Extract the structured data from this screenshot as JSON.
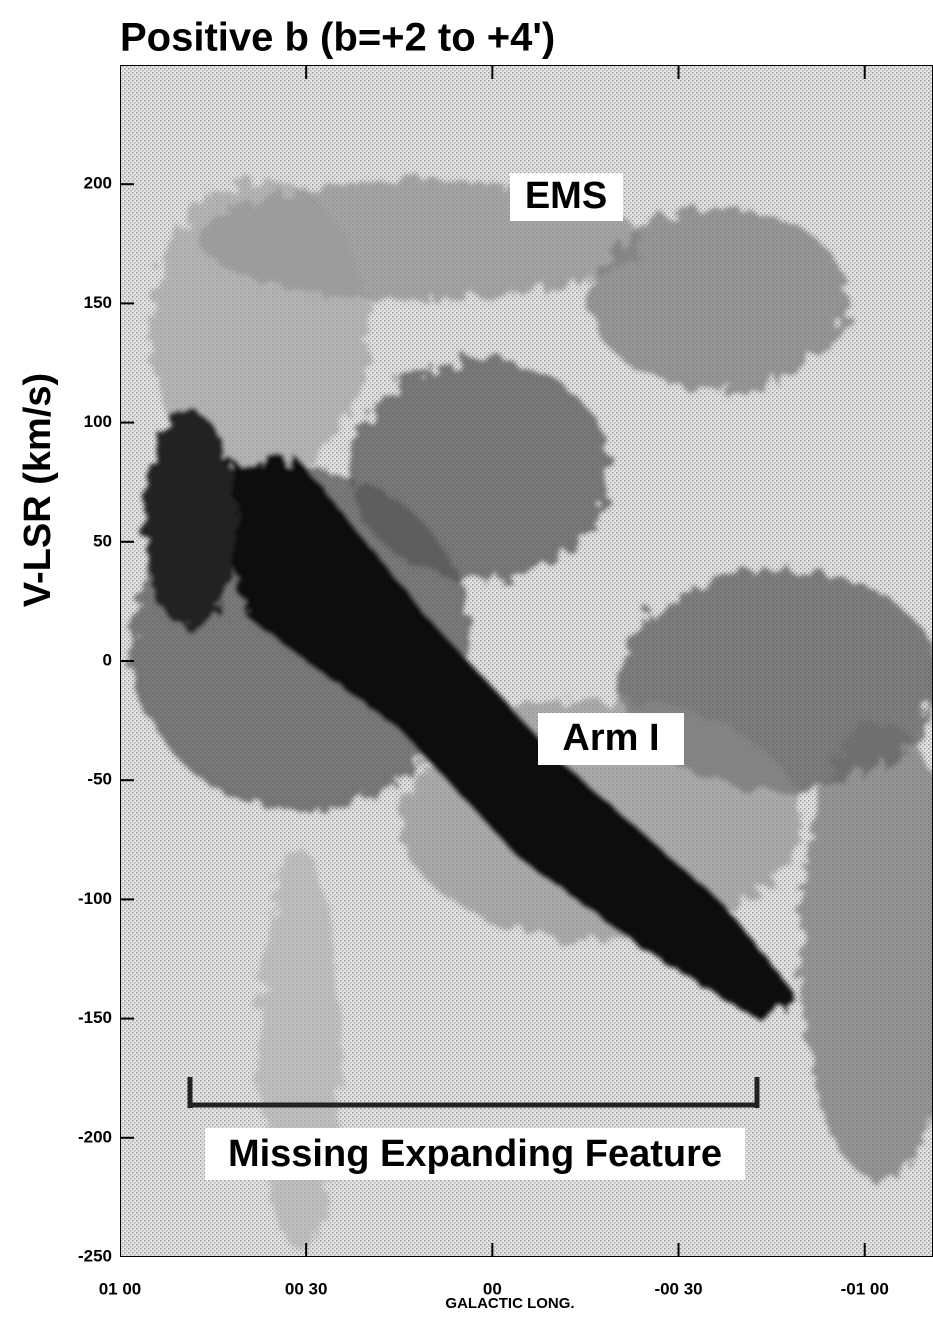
{
  "chart_data": {
    "type": "position-velocity",
    "title": "Positive b (b=+2 to +4')",
    "ylabel": "V-LSR (km/s)",
    "xlabel": "GALACTIC LONG.",
    "xlim": [
      60,
      -71
    ],
    "xticks": [
      {
        "value": 60,
        "label": "01 00"
      },
      {
        "value": 30,
        "label": "00 30"
      },
      {
        "value": 0,
        "label": "00"
      },
      {
        "value": -30,
        "label": "-00 30"
      },
      {
        "value": -60,
        "label": "-01 00"
      }
    ],
    "ylim": [
      -250,
      250
    ],
    "yticks": [
      200,
      150,
      100,
      50,
      0,
      -50,
      -100,
      -150,
      -200,
      -250
    ],
    "annotations": [
      "EMS",
      "Arm I",
      "Missing Expanding Feature"
    ]
  }
}
